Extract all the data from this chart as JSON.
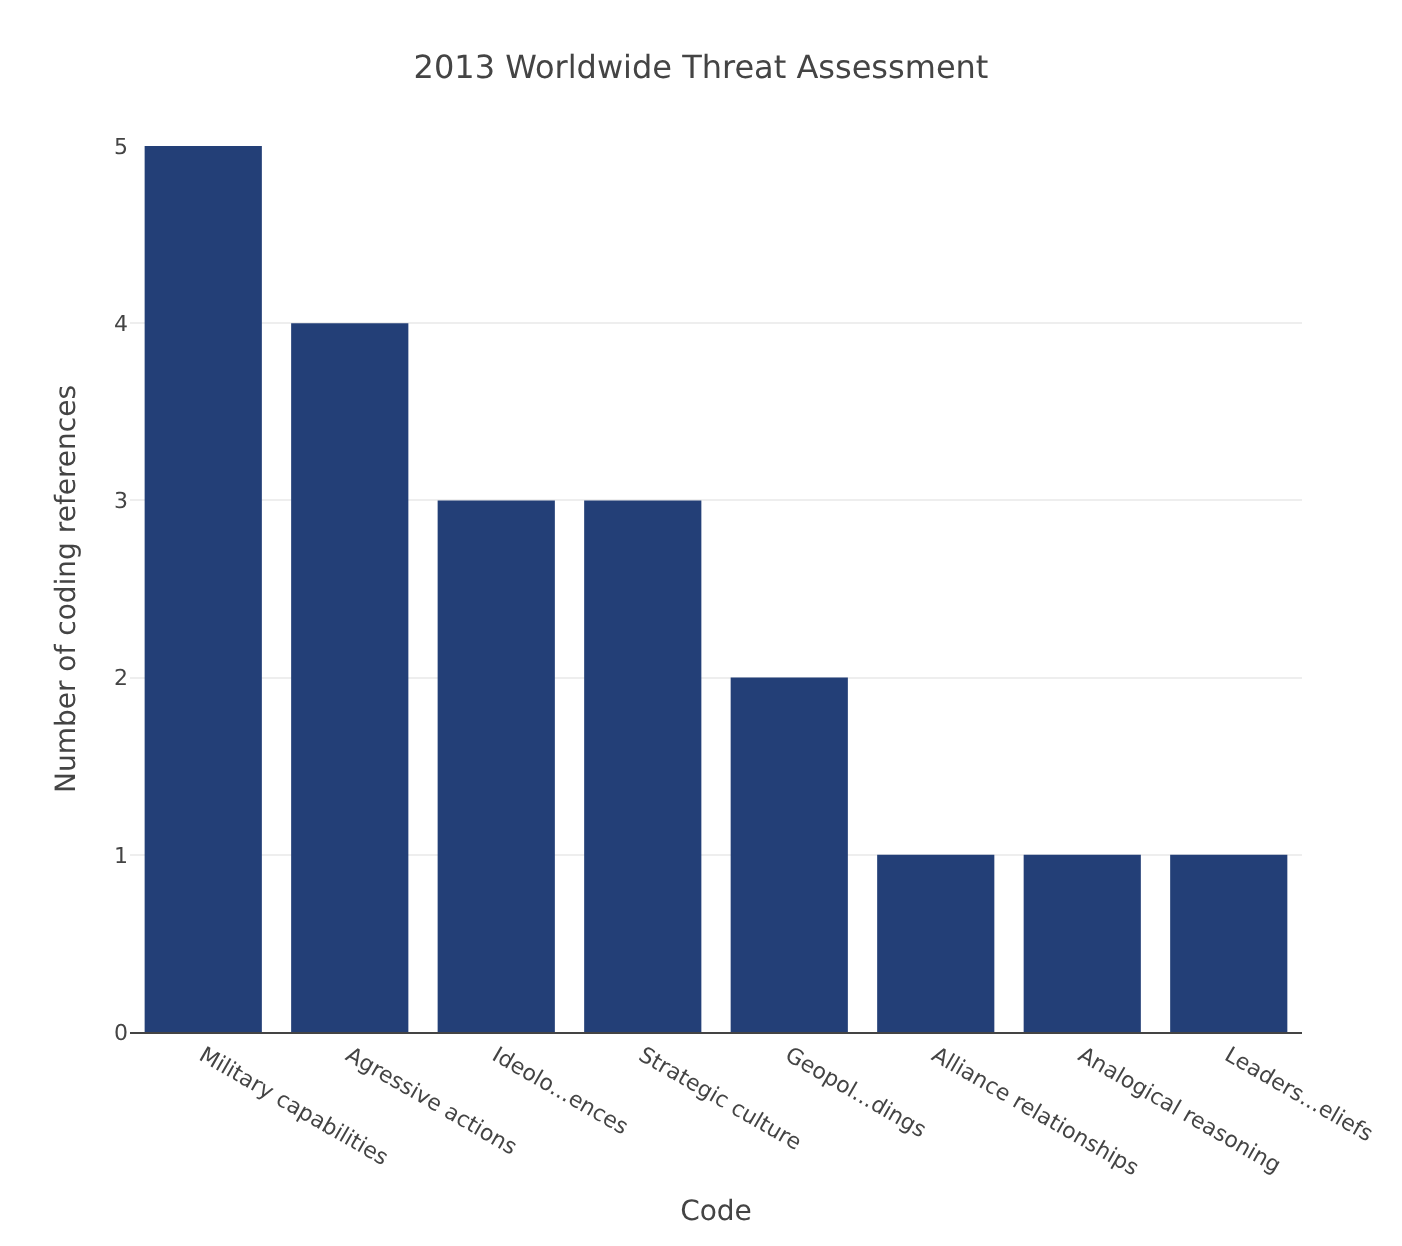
{
  "chart_data": {
    "type": "bar",
    "title": "2013 Worldwide Threat Assessment",
    "xlabel": "Code",
    "ylabel": "Number of coding references",
    "categories": [
      "Military capabilities",
      "Agressive actions",
      "Ideolo...ences",
      "Strategic culture",
      "Geopol...dings",
      "Alliance relationships",
      "Analogical reasoning",
      "Leaders...eliefs"
    ],
    "values": [
      5,
      4,
      3,
      3,
      2,
      1,
      1,
      1
    ],
    "color": "#233f77",
    "ylim": [
      0,
      5
    ],
    "yticks": [
      0,
      1,
      2,
      3,
      4,
      5
    ],
    "grid": "y",
    "legend": false
  }
}
